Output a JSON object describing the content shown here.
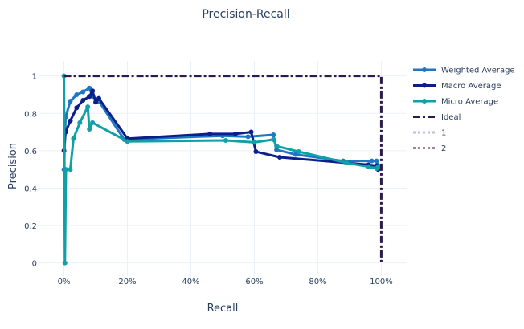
{
  "chart_data": {
    "type": "line",
    "title": "Precision-Recall",
    "xlabel": "Recall",
    "ylabel": "Precision",
    "xlim": [
      -0.08,
      1.08
    ],
    "ylim": [
      -0.07,
      1.08
    ],
    "x_ticks": [
      0,
      0.2,
      0.4,
      0.6,
      0.8,
      1.0
    ],
    "x_tick_labels": [
      "0%",
      "20%",
      "40%",
      "60%",
      "80%",
      "100%"
    ],
    "y_ticks": [
      0,
      0.2,
      0.4,
      0.6,
      0.8,
      1.0
    ],
    "y_tick_labels": [
      "0",
      "0.2",
      "0.4",
      "0.6",
      "0.8",
      "1"
    ],
    "grid": true,
    "legend_position": "right",
    "series": [
      {
        "name": "Weighted Average",
        "color": "#1f77c4",
        "style": "solid-markers",
        "x": [
          0,
          0.005,
          0.02,
          0.04,
          0.06,
          0.08,
          0.09,
          0.11,
          0.19,
          0.5,
          0.58,
          0.66,
          0.67,
          0.73,
          0.88,
          0.97,
          0.985,
          0.99
        ],
        "y": [
          0.5,
          0.78,
          0.865,
          0.9,
          0.915,
          0.935,
          0.89,
          0.865,
          0.66,
          0.68,
          0.675,
          0.685,
          0.605,
          0.58,
          0.545,
          0.545,
          0.545,
          0.52
        ]
      },
      {
        "name": "Macro Average",
        "color": "#0b1f8a",
        "style": "solid-markers",
        "x": [
          0,
          0.005,
          0.02,
          0.04,
          0.06,
          0.08,
          0.09,
          0.1,
          0.11,
          0.2,
          0.46,
          0.54,
          0.59,
          0.605,
          0.68,
          0.96,
          0.985,
          0.99
        ],
        "y": [
          0.6,
          0.7,
          0.76,
          0.83,
          0.87,
          0.89,
          0.92,
          0.86,
          0.88,
          0.665,
          0.69,
          0.69,
          0.7,
          0.595,
          0.565,
          0.525,
          0.52,
          0.5
        ]
      },
      {
        "name": "Micro Average",
        "color": "#0fa0a8",
        "style": "solid-markers",
        "x": [
          0,
          0.003,
          0.006,
          0.02,
          0.03,
          0.05,
          0.075,
          0.08,
          0.09,
          0.2,
          0.51,
          0.6,
          0.66,
          0.67,
          0.74,
          0.89,
          0.96,
          0.985,
          0.99
        ],
        "y": [
          1.0,
          0.0,
          0.5,
          0.5,
          0.665,
          0.75,
          0.835,
          0.715,
          0.75,
          0.65,
          0.655,
          0.645,
          0.66,
          0.625,
          0.595,
          0.535,
          0.515,
          0.505,
          0.515
        ]
      },
      {
        "name": "Ideal",
        "color": "#2a1b4a",
        "style": "dashdot",
        "x": [
          0,
          1,
          1
        ],
        "y": [
          1,
          1,
          0
        ]
      },
      {
        "name": "1",
        "color": "#c5b8d8",
        "style": "dot-legend-only",
        "x": [],
        "y": []
      },
      {
        "name": "2",
        "color": "#a87fa2",
        "style": "dot-legend-only",
        "x": [],
        "y": []
      }
    ]
  }
}
